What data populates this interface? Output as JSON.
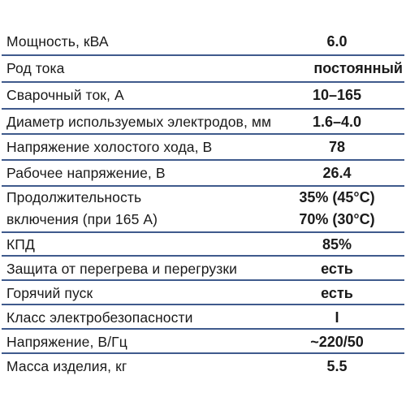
{
  "rows": [
    {
      "label": "Мощность, кВА",
      "value": "6.0"
    },
    {
      "label": "Род тока",
      "value": "постоянный"
    },
    {
      "label": "Сварочный ток, А",
      "value": "10–165"
    },
    {
      "label": "Диаметр используемых электродов, мм",
      "value": "1.6–4.0"
    },
    {
      "label": "Напряжение холостого хода, В",
      "value": "78"
    },
    {
      "label": "Рабочее напряжение, В",
      "value": "26.4"
    },
    {
      "label_line1": "Продолжительность",
      "label_line2": "включения (при 165 А)",
      "value_line1": "35% (45°C)",
      "value_line2": "70% (30°C)"
    },
    {
      "label": "КПД",
      "value": "85%"
    },
    {
      "label": "Защита от перегрева и перегрузки",
      "value": "есть"
    },
    {
      "label": "Горячий пуск",
      "value": "есть"
    },
    {
      "label": "Класс электробезопасности",
      "value": "I"
    },
    {
      "label": "Напряжение, В/Гц",
      "value": "~220/50"
    },
    {
      "label": "Масса изделия, кг",
      "value": "5.5"
    }
  ],
  "colors": {
    "divider": "#3f5a8c",
    "text": "#1a1a1a",
    "background": "#ffffff"
  }
}
